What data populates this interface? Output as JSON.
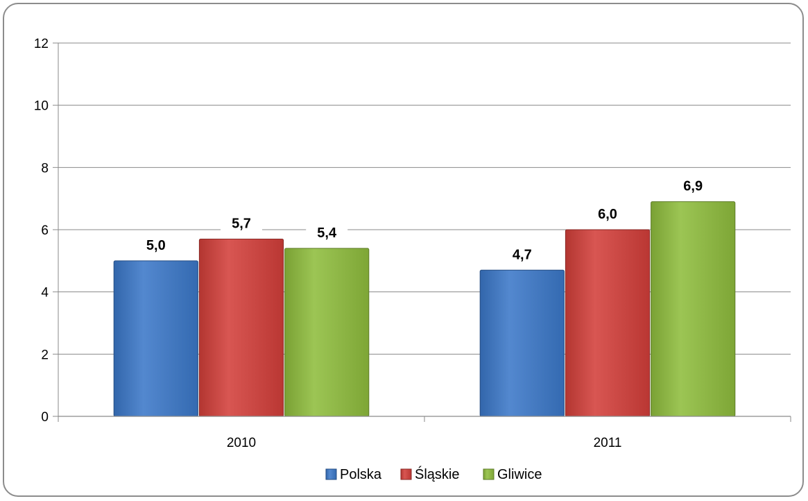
{
  "chart_data": {
    "type": "bar",
    "categories": [
      "2010",
      "2011"
    ],
    "series": [
      {
        "name": "Polska",
        "values": [
          5.0,
          4.7
        ],
        "labels": [
          "5,0",
          "4,7"
        ],
        "color": "#3b78c9"
      },
      {
        "name": "Śląskie",
        "values": [
          5.7,
          6.0
        ],
        "labels": [
          "5,7",
          "6,0"
        ],
        "color": "#d33f3a"
      },
      {
        "name": "Gliwice",
        "values": [
          5.4,
          6.9
        ],
        "labels": [
          "5,4",
          "6,9"
        ],
        "color": "#8fbd3d"
      }
    ],
    "ylim": [
      0,
      12
    ],
    "yticks": [
      "0",
      "2",
      "4",
      "6",
      "8",
      "10",
      "12"
    ],
    "grid": true,
    "legend_position": "bottom"
  }
}
